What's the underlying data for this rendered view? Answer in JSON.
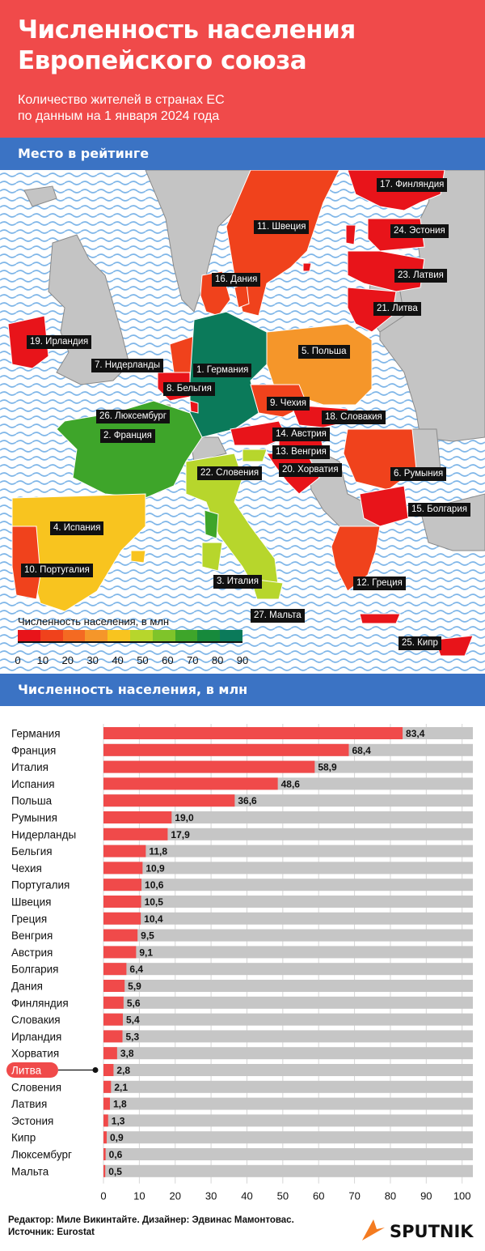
{
  "header": {
    "title_line1": "Численность населения",
    "title_line2": "Европейского союза",
    "subtitle_line1": "Количество жителей в странах ЕС",
    "subtitle_line2": "по данным на 1 января 2024 года"
  },
  "map_section": {
    "heading": "Место в рейтинге",
    "labels": [
      "17. Финляндия",
      "11. Швеция",
      "24. Эстония",
      "23. Латвия",
      "16. Дания",
      "21. Литва",
      "19. Ирландия",
      "5. Польша",
      "7. Нидерланды",
      "1. Германия",
      "8. Бельгия",
      "9. Чехия",
      "26. Люксембург",
      "18. Словакия",
      "2. Франция",
      "14. Австрия",
      "13. Венгрия",
      "22. Словения",
      "20. Хорватия",
      "6. Румыния",
      "15. Болгария",
      "4. Испания",
      "10. Португалия",
      "3. Италия",
      "12. Греция",
      "27. Мальта",
      "25. Кипр"
    ],
    "legend_title": "Численность населения, в млн",
    "legend_ticks": [
      "0",
      "10",
      "20",
      "30",
      "40",
      "50",
      "60",
      "70",
      "80",
      "90"
    ],
    "legend_colors": [
      "#e8141a",
      "#f0421c",
      "#f46a22",
      "#f5962a",
      "#f8c41f",
      "#b7d62c",
      "#7fc42a",
      "#3ea52a",
      "#178a3c",
      "#0b7a5a"
    ]
  },
  "bar_section": {
    "heading": "Численность населения, в млн"
  },
  "chart_data": {
    "type": "bar",
    "orientation": "horizontal",
    "title": "Численность населения, в млн",
    "categories": [
      "Германия",
      "Франция",
      "Италия",
      "Испания",
      "Польша",
      "Румыния",
      "Нидерланды",
      "Бельгия",
      "Чехия",
      "Португалия",
      "Швеция",
      "Греция",
      "Венгрия",
      "Австрия",
      "Болгария",
      "Дания",
      "Финляндия",
      "Словакия",
      "Ирландия",
      "Хорватия",
      "Литва",
      "Словения",
      "Латвия",
      "Эстония",
      "Кипр",
      "Люксембург",
      "Мальта"
    ],
    "values": [
      83.4,
      68.4,
      58.9,
      48.6,
      36.6,
      19.0,
      17.9,
      11.8,
      10.9,
      10.6,
      10.5,
      10.4,
      9.5,
      9.1,
      6.4,
      5.9,
      5.6,
      5.4,
      5.3,
      3.8,
      2.8,
      2.1,
      1.8,
      1.3,
      0.9,
      0.6,
      0.5
    ],
    "value_labels": [
      "83,4",
      "68,4",
      "58,9",
      "48,6",
      "36,6",
      "19,0",
      "17,9",
      "11,8",
      "10,9",
      "10,6",
      "10,5",
      "10,4",
      "9,5",
      "9,1",
      "6,4",
      "5,9",
      "5,6",
      "5,4",
      "5,3",
      "3,8",
      "2,8",
      "2,1",
      "1,8",
      "1,3",
      "0,9",
      "0,6",
      "0,5"
    ],
    "highlighted": "Литва",
    "xlim": [
      0,
      103
    ],
    "xticks": [
      "0",
      "10",
      "20",
      "30",
      "40",
      "50",
      "60",
      "70",
      "80",
      "90",
      "100"
    ],
    "bar_color": "#f04a4a",
    "track_color": "#c6c6c6",
    "grid": true
  },
  "footer": {
    "line1": "Редактор: Миле Викинтайте.  Дизайнер: Эдвинас Мамонтовас.",
    "line2": "Источник: Eurostat",
    "logo_text": "SPUTNIK"
  }
}
